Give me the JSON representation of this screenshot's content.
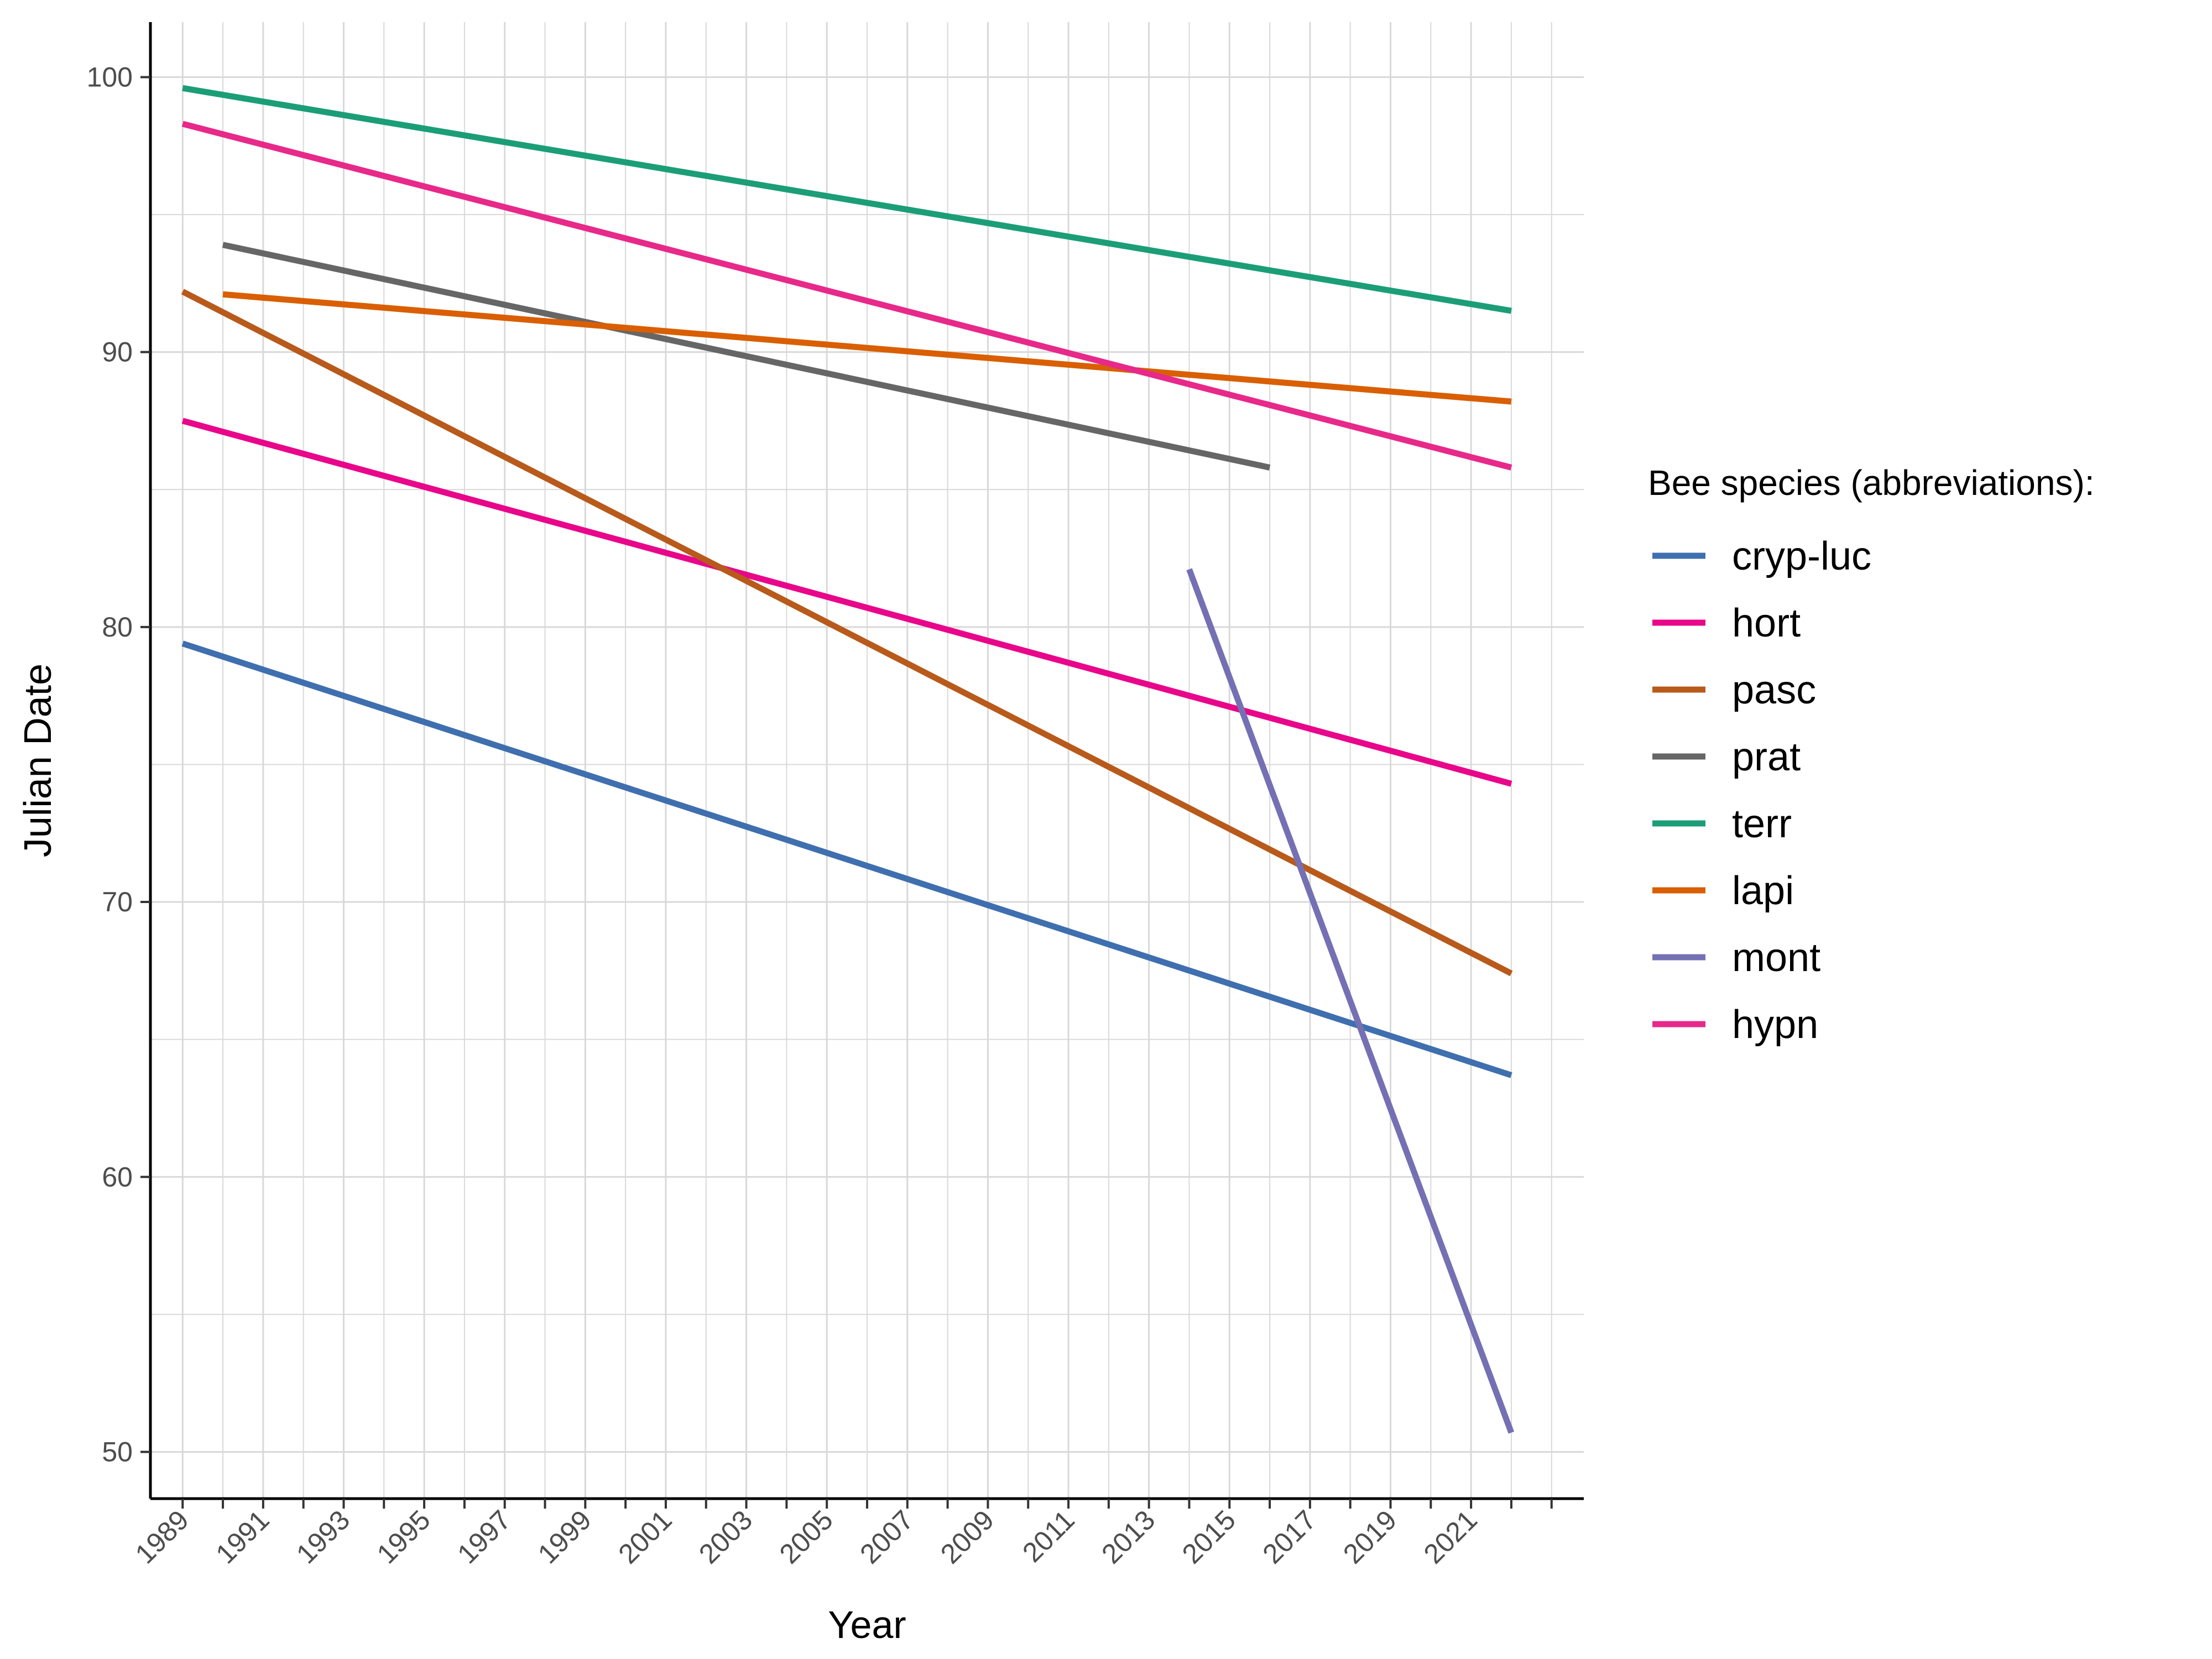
{
  "chart_data": {
    "type": "line",
    "title": "",
    "xlabel": "Year",
    "ylabel": "Julian Date",
    "xlim": [
      1988.2,
      2023.8
    ],
    "ylim": [
      48.3,
      102.0
    ],
    "x_ticks": [
      1989,
      1991,
      1993,
      1995,
      1997,
      1999,
      2001,
      2003,
      2005,
      2007,
      2009,
      2011,
      2013,
      2015,
      2017,
      2019,
      2021
    ],
    "y_ticks": [
      50,
      60,
      70,
      80,
      90,
      100
    ],
    "grid": true,
    "legend": {
      "title": "Bee species (abbreviations):",
      "position": "right"
    },
    "series": [
      {
        "name": "cryp-luc",
        "color": "#3f6fae",
        "x": [
          1989,
          2022
        ],
        "y": [
          79.4,
          63.7
        ]
      },
      {
        "name": "hort",
        "color": "#e8068a",
        "x": [
          1989,
          2022
        ],
        "y": [
          87.5,
          74.3
        ]
      },
      {
        "name": "pasc",
        "color": "#b85a1b",
        "x": [
          1989,
          2022
        ],
        "y": [
          92.2,
          67.4
        ]
      },
      {
        "name": "prat",
        "color": "#666666",
        "x": [
          1990,
          2016
        ],
        "y": [
          93.9,
          85.8
        ]
      },
      {
        "name": "terr",
        "color": "#1b9e77",
        "x": [
          1989,
          2022
        ],
        "y": [
          99.6,
          91.5
        ]
      },
      {
        "name": "lapi",
        "color": "#d95f02",
        "x": [
          1990,
          2022
        ],
        "y": [
          92.1,
          88.2
        ]
      },
      {
        "name": "mont",
        "color": "#7570b3",
        "x": [
          2014,
          2022
        ],
        "y": [
          82.1,
          50.7
        ]
      },
      {
        "name": "hypn",
        "color": "#e7298a",
        "x": [
          1989,
          2022
        ],
        "y": [
          98.3,
          85.8
        ]
      }
    ]
  }
}
